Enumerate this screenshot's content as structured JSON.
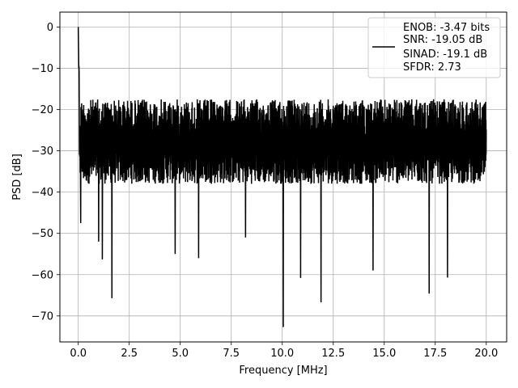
{
  "chart_data": {
    "type": "line",
    "xlabel": "Frequency [MHz]",
    "ylabel": "PSD [dB]",
    "xlim": [
      -0.9,
      21.0
    ],
    "ylim": [
      -76.3,
      3.6
    ],
    "xticks": [
      0.0,
      2.5,
      5.0,
      7.5,
      10.0,
      12.5,
      15.0,
      17.5,
      20.0
    ],
    "xtick_labels": [
      "0.0",
      "2.5",
      "5.0",
      "7.5",
      "10.0",
      "12.5",
      "15.0",
      "17.5",
      "20.0"
    ],
    "yticks": [
      0,
      -10,
      -20,
      -30,
      -40,
      -50,
      -60,
      -70
    ],
    "ytick_labels": [
      "0",
      "−10",
      "−20",
      "−30",
      "−40",
      "−50",
      "−60",
      "−70"
    ],
    "grid": true,
    "legend_position": "top-right",
    "legend_entries": [
      "ENOB: -3.47 bits",
      "SNR: -19.05 dB",
      "SINAD: -19.1 dB",
      "SFDR: 2.73"
    ],
    "series": [
      {
        "color": "#000000",
        "x_range": [
          0.0,
          20.0
        ],
        "peak": [
          0.0,
          0.0
        ],
        "noise_ceiling_db": -16.5,
        "noise_floor_db": -42.0,
        "notable_dips": [
          [
            0.12,
            -47.5
          ],
          [
            1.0,
            -52.0
          ],
          [
            1.18,
            -56.3
          ],
          [
            1.65,
            -65.7
          ],
          [
            4.75,
            -55.0
          ],
          [
            5.9,
            -56.0
          ],
          [
            8.2,
            -51.0
          ],
          [
            10.05,
            -72.7
          ],
          [
            10.9,
            -60.8
          ],
          [
            11.9,
            -66.7
          ],
          [
            14.45,
            -59.0
          ],
          [
            17.2,
            -64.6
          ],
          [
            18.1,
            -60.7
          ]
        ]
      }
    ]
  }
}
